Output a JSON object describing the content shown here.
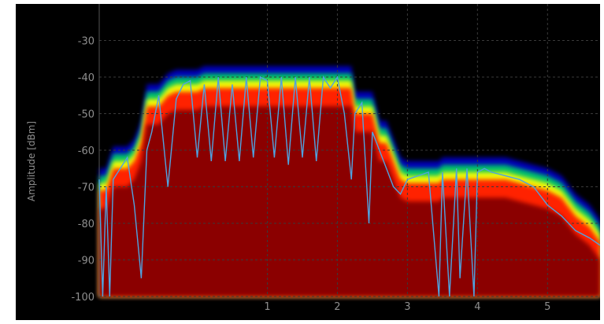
{
  "chart_data": {
    "type": "heatmap",
    "title": "",
    "xlabel": "",
    "ylabel": "Amplitude [dBm]",
    "ylim": [
      -100,
      -20
    ],
    "xlim": [
      -1.4,
      5.75
    ],
    "y_ticks": [
      "-30",
      "-40",
      "-50",
      "-60",
      "-70",
      "-80",
      "-90",
      "-100"
    ],
    "y_tick_values": [
      -30,
      -40,
      -50,
      -60,
      -70,
      -80,
      -90,
      -100
    ],
    "x_ticks": [
      "1",
      "2",
      "3",
      "4",
      "5"
    ],
    "x_tick_values": [
      1,
      2,
      3,
      4,
      5
    ],
    "grid": true,
    "colors": {
      "background": "#000000",
      "trace": "#4fa3e0",
      "gridline": "#3a3a3a",
      "heat_low": "#0000cc",
      "heat_mid": "#00cc66",
      "heat_high": "#ffff00",
      "heat_peak": "#ff2200",
      "heat_core": "#8b0000"
    },
    "series": [
      {
        "x": [
          -1.4,
          -1.35,
          -1.3,
          -1.25,
          -1.2,
          -1.1,
          -1.0,
          -0.9,
          -0.8,
          -0.72,
          -0.65,
          -0.55,
          -0.42,
          -0.3,
          -0.2,
          -0.1,
          0.0,
          0.1,
          0.2,
          0.3,
          0.4,
          0.5,
          0.6,
          0.7,
          0.8,
          0.9,
          1.0,
          1.1,
          1.2,
          1.3,
          1.4,
          1.5,
          1.6,
          1.7,
          1.8,
          1.9,
          2.0,
          2.1,
          2.2,
          2.25,
          2.35,
          2.45,
          2.5,
          2.6,
          2.7,
          2.8,
          2.9,
          3.0,
          3.15,
          3.3,
          3.45,
          3.5,
          3.6,
          3.7,
          3.75,
          3.85,
          3.95,
          4.0,
          4.1,
          4.2,
          4.4,
          4.6,
          4.8,
          5.0,
          5.2,
          5.4,
          5.6,
          5.75
        ],
        "y": [
          -68,
          -100,
          -70,
          -100,
          -68,
          -65,
          -62,
          -75,
          -95,
          -60,
          -55,
          -45,
          -70,
          -46,
          -42,
          -41,
          -62,
          -42,
          -63,
          -40,
          -63,
          -42,
          -63,
          -40,
          -62,
          -40,
          -41,
          -62,
          -40,
          -64,
          -40,
          -62,
          -40,
          -63,
          -40,
          -43,
          -40,
          -50,
          -68,
          -50,
          -47,
          -80,
          -55,
          -60,
          -65,
          -70,
          -72,
          -68,
          -67,
          -66,
          -100,
          -66,
          -100,
          -65,
          -95,
          -65,
          -100,
          -66,
          -65,
          -66,
          -67,
          -68,
          -70,
          -75,
          -78,
          -82,
          -84,
          -86
        ]
      }
    ]
  }
}
